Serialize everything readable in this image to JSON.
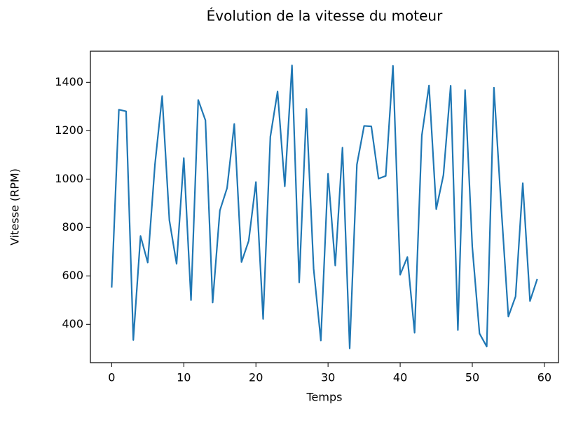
{
  "chart_data": {
    "type": "line",
    "title": "Évolution de la vitesse du moteur",
    "xlabel": "Temps",
    "ylabel": "Vitesse (RPM)",
    "x": [
      0,
      1,
      2,
      3,
      4,
      5,
      6,
      7,
      8,
      9,
      10,
      11,
      12,
      13,
      14,
      15,
      16,
      17,
      18,
      19,
      20,
      21,
      22,
      23,
      24,
      25,
      26,
      27,
      28,
      29,
      30,
      31,
      32,
      33,
      34,
      35,
      36,
      37,
      38,
      39,
      40,
      41,
      42,
      43,
      44,
      45,
      46,
      47,
      48,
      49,
      50,
      51,
      52,
      53,
      54,
      55,
      56,
      57,
      58,
      59
    ],
    "series": [
      {
        "name": "Vitesse",
        "color": "#1f77b4",
        "values": [
          552,
          1287,
          1280,
          335,
          765,
          655,
          1060,
          1343,
          830,
          650,
          1087,
          500,
          1327,
          1243,
          490,
          870,
          963,
          1228,
          657,
          745,
          988,
          422,
          1175,
          1362,
          970,
          1470,
          573,
          1290,
          630,
          333,
          1022,
          643,
          1130,
          300,
          1060,
          1220,
          1218,
          1002,
          1013,
          1468,
          605,
          678,
          365,
          1180,
          1387,
          876,
          1017,
          1386,
          376,
          1368,
          720,
          362,
          308,
          1378,
          890,
          432,
          515,
          983,
          496,
          587
        ]
      }
    ],
    "xlim": [
      -2.95,
      61.95
    ],
    "ylim": [
      241.5,
      1528.5
    ],
    "xticks": [
      0,
      10,
      20,
      30,
      40,
      50,
      60
    ],
    "yticks": [
      400,
      600,
      800,
      1000,
      1200,
      1400
    ],
    "grid": false
  }
}
